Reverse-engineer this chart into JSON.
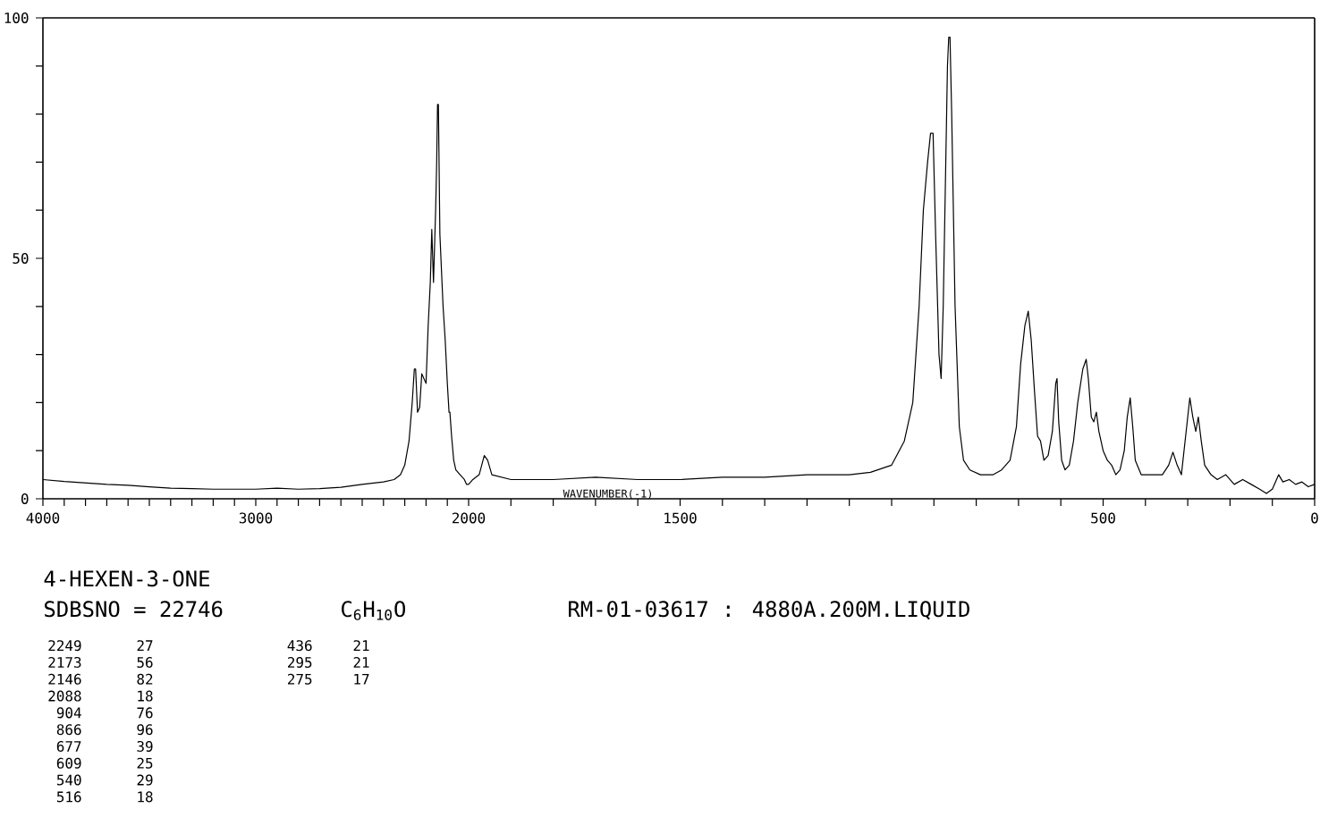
{
  "chart_data": [
    {
      "type": "line",
      "title": "4-HEXEN-3-ONE",
      "xlim": [
        4000,
        2000
      ],
      "ylim": [
        0,
        100
      ],
      "xticks": [
        4000,
        {
          "value": 3900,
          "label": null
        },
        {
          "value": 3800,
          "label": null
        },
        {
          "value": 3700,
          "label": null
        },
        {
          "value": 3600,
          "label": null
        },
        {
          "value": 3500,
          "label": null
        },
        {
          "value": 3400,
          "label": null
        },
        {
          "value": 3300,
          "label": null
        },
        {
          "value": 3200,
          "label": null
        },
        {
          "value": 3100,
          "label": null
        },
        3000,
        {
          "value": 2900,
          "label": null
        },
        {
          "value": 2800,
          "label": null
        },
        {
          "value": 2700,
          "label": null
        },
        {
          "value": 2600,
          "label": null
        },
        {
          "value": 2500,
          "label": null
        },
        {
          "value": 2400,
          "label": null
        },
        {
          "value": 2300,
          "label": null
        },
        {
          "value": 2200,
          "label": null
        },
        {
          "value": 2100,
          "label": null
        }
      ],
      "yticks": [
        0,
        {
          "value": 10,
          "label": null
        },
        {
          "value": 20,
          "label": null
        },
        {
          "value": 30,
          "label": null
        },
        {
          "value": 40,
          "label": null
        },
        50,
        {
          "value": 60,
          "label": null
        },
        {
          "value": 70,
          "label": null
        },
        {
          "value": 80,
          "label": null
        },
        {
          "value": 90,
          "label": null
        },
        100
      ],
      "series": [
        {
          "color": "#000000",
          "x": [
            4000,
            3900,
            3800,
            3700,
            3600,
            3500,
            3400,
            3300,
            3200,
            3100,
            3000,
            2900,
            2800,
            2700,
            2600,
            2500,
            2400,
            2350,
            2320,
            2300,
            2280,
            2265,
            2255,
            2249,
            2240,
            2230,
            2220,
            2210,
            2200,
            2190,
            2180,
            2173,
            2165,
            2155,
            2150,
            2146,
            2142,
            2135,
            2120,
            2110,
            2100,
            2092,
            2088,
            2080,
            2070,
            2060,
            2040,
            2020,
            2010,
            2000
          ],
          "values": [
            4,
            3.6,
            3.3,
            3,
            2.8,
            2.5,
            2.2,
            2.1,
            2,
            2,
            2,
            2.2,
            2,
            2.1,
            2.4,
            3,
            3.5,
            4,
            5,
            7,
            12,
            20,
            27,
            27,
            18,
            19,
            26,
            25,
            24,
            36,
            45,
            56,
            45,
            60,
            70,
            82,
            82,
            55,
            40,
            33,
            24,
            18,
            18,
            13,
            8,
            6,
            5,
            4,
            3,
            3
          ]
        }
      ],
      "annotations": [
        "SDBSNO = 22746",
        "C$_{6}$H$_{10}$O",
        "RM-01-03617 : 4880A.200M.LIQUID",
        "2249",
        "27",
        "2173",
        "56",
        "2146",
        "82",
        "2088",
        "18",
        "904",
        "76",
        "866",
        "96",
        "677",
        "39",
        "609",
        "25",
        "540",
        "29",
        "516",
        "18",
        "436",
        "21",
        "295",
        "21",
        "275",
        "17"
      ]
    },
    {
      "type": "line",
      "xlabel": "WAVENUMBER(-1)",
      "tick_labels": "x",
      "xlim": [
        2000,
        0
      ],
      "ylim": [
        0,
        100
      ],
      "xticks": [
        2000,
        {
          "value": 1900,
          "label": null
        },
        {
          "value": 1800,
          "label": null
        },
        {
          "value": 1700,
          "label": null
        },
        {
          "value": 1600,
          "label": null
        },
        1500,
        {
          "value": 1400,
          "label": null
        },
        {
          "value": 1300,
          "label": null
        },
        {
          "value": 1200,
          "label": null
        },
        {
          "value": 1100,
          "label": null
        },
        {
          "value": 1000,
          "label": null
        },
        {
          "value": 900,
          "label": null
        },
        {
          "value": 800,
          "label": null
        },
        {
          "value": 700,
          "label": null
        },
        {
          "value": 600,
          "label": null
        },
        500,
        {
          "value": 400,
          "label": null
        },
        {
          "value": 300,
          "label": null
        },
        {
          "value": 200,
          "label": null
        },
        {
          "value": 100,
          "label": null
        },
        0
      ],
      "series": [
        {
          "color": "#000000",
          "x": [
            2000,
            1990,
            1975,
            1963,
            1955,
            1945,
            1900,
            1800,
            1700,
            1600,
            1500,
            1400,
            1300,
            1200,
            1100,
            1050,
            1000,
            970,
            950,
            935,
            925,
            915,
            908,
            902,
            896,
            888,
            883,
            878,
            872,
            868,
            865,
            862,
            858,
            850,
            840,
            830,
            815,
            790,
            760,
            740,
            720,
            705,
            695,
            685,
            677,
            670,
            662,
            655,
            648,
            640,
            630,
            620,
            612,
            609,
            605,
            598,
            590,
            580,
            570,
            560,
            548,
            540,
            535,
            528,
            522,
            516,
            510,
            500,
            490,
            480,
            470,
            460,
            450,
            443,
            436,
            430,
            424,
            410,
            380,
            360,
            345,
            335,
            325,
            315,
            305,
            295,
            288,
            281,
            275,
            268,
            260,
            245,
            230,
            210,
            190,
            170,
            150,
            130,
            114,
            100,
            85,
            75,
            60,
            45,
            30,
            15,
            0
          ],
          "values": [
            3,
            4,
            5,
            9,
            8,
            5,
            4,
            4,
            4.5,
            4,
            4,
            4.5,
            4.5,
            5,
            5,
            5.5,
            7,
            12,
            20,
            40,
            60,
            70,
            76,
            76,
            55,
            30,
            25,
            40,
            70,
            90,
            96,
            96,
            80,
            40,
            15,
            8,
            6,
            5,
            5,
            6,
            8,
            15,
            28,
            36,
            39,
            33,
            22,
            13,
            12,
            8,
            9,
            14,
            24,
            25,
            16,
            8,
            6,
            7,
            12,
            20,
            27,
            29,
            25,
            17,
            16,
            18,
            14,
            10,
            8,
            7,
            5,
            6,
            10,
            17,
            21,
            15,
            8,
            5,
            5,
            5,
            7,
            9.7,
            7,
            5,
            13,
            21,
            17,
            14,
            17,
            12,
            7,
            5,
            4,
            5,
            3,
            4,
            3,
            2,
            1.1,
            2,
            5,
            3.5,
            4,
            3,
            3.5,
            2.5,
            3
          ]
        }
      ]
    }
  ]
}
